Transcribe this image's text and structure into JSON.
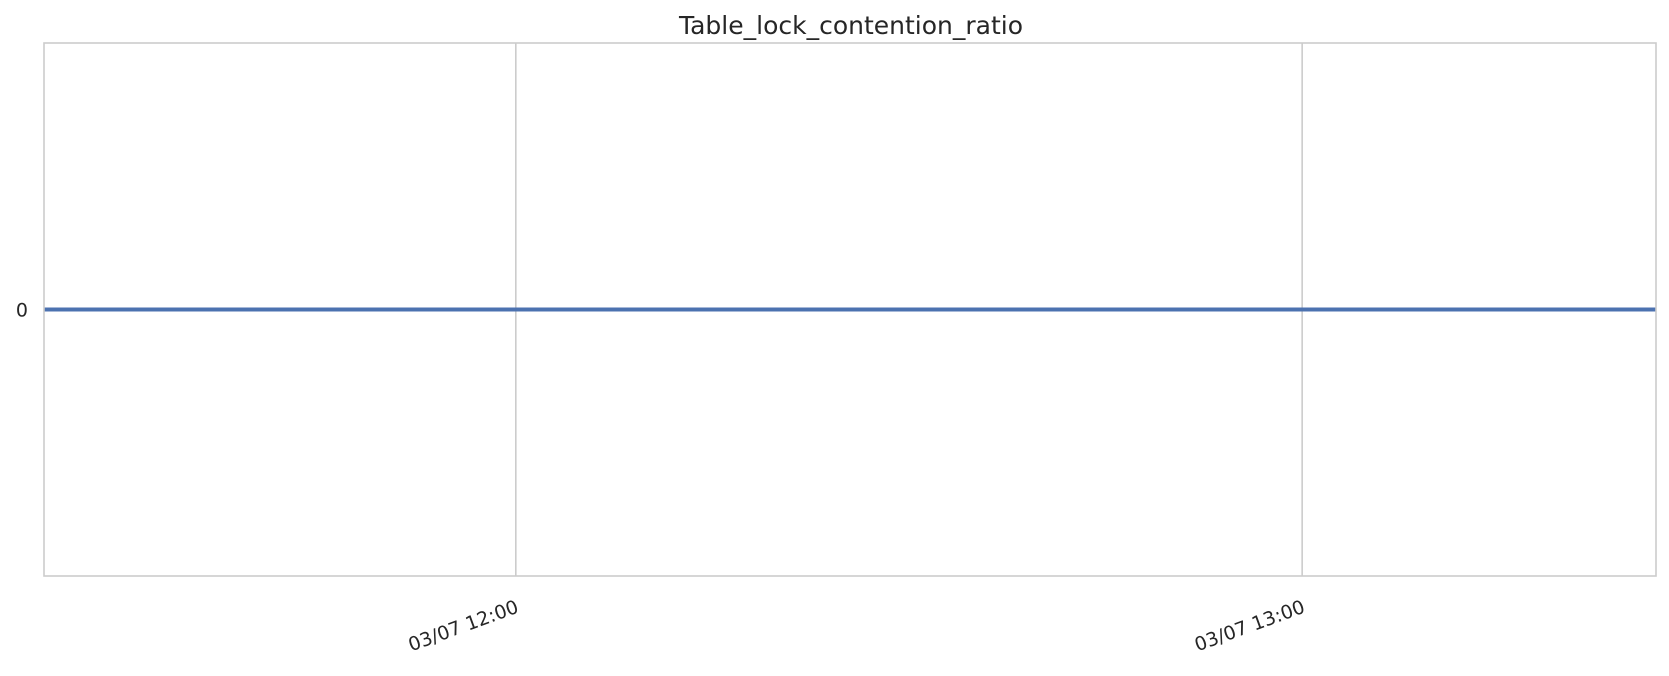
{
  "chart_data": {
    "type": "line",
    "title": "Table_lock_contention_ratio",
    "xlabel": "",
    "ylabel": "",
    "x_ticks": [
      "03/07 12:00",
      "03/07 13:00"
    ],
    "y_ticks": [
      "0"
    ],
    "xlim": [
      "03/07 11:24",
      "03/07 13:27"
    ],
    "ylim": [
      -1,
      1
    ],
    "grid": true,
    "legend": "none",
    "series": [
      {
        "x": [
          "03/07 11:24",
          "03/07 13:27"
        ],
        "values": [
          0,
          0
        ],
        "color": "#4c72b0"
      }
    ]
  }
}
